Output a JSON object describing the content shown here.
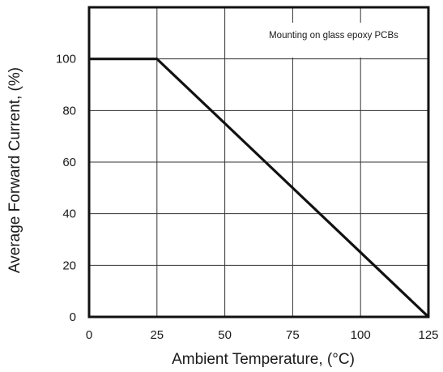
{
  "chart_data": {
    "type": "line",
    "title": "",
    "xlabel": "Ambient Temperature, (°C)",
    "ylabel": "Average Forward Current, (%)",
    "xlim": [
      0,
      125
    ],
    "ylim": [
      0,
      120
    ],
    "xticks": [
      0,
      25,
      50,
      75,
      100,
      125
    ],
    "yticks": [
      0,
      20,
      40,
      60,
      80,
      100
    ],
    "grid": true,
    "annotation": "Mounting on glass epoxy PCBs",
    "series": [
      {
        "x": [
          0,
          25,
          125
        ],
        "y": [
          100,
          100,
          0
        ]
      }
    ]
  },
  "colors": {
    "line": "#111111",
    "grid": "#333333",
    "background": "#ffffff"
  }
}
